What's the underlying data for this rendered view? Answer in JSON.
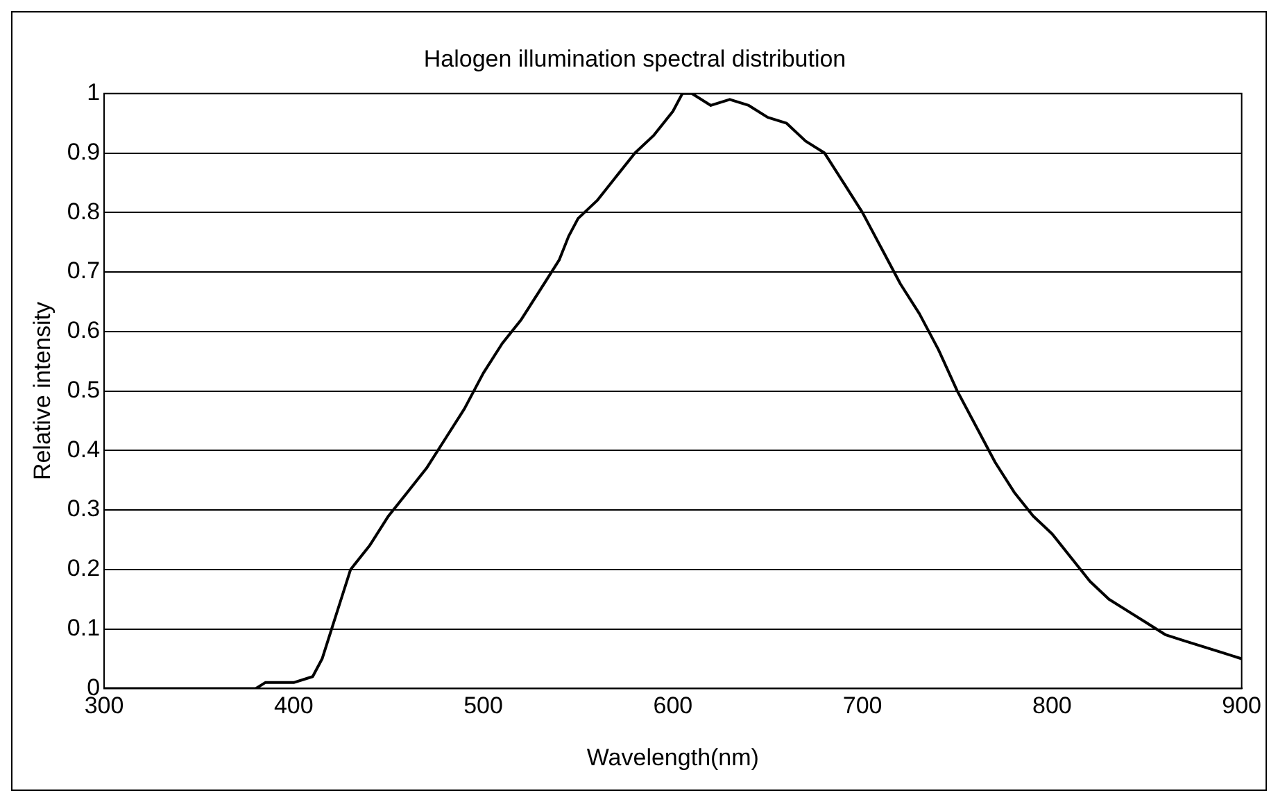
{
  "chart_data": {
    "type": "line",
    "title": "Halogen illumination spectral distribution",
    "xlabel": "Wavelength(nm)",
    "ylabel": "Relative intensity",
    "x": [
      300,
      320,
      340,
      360,
      380,
      385,
      400,
      410,
      415,
      420,
      425,
      430,
      440,
      450,
      460,
      470,
      480,
      490,
      500,
      510,
      520,
      530,
      540,
      545,
      550,
      560,
      570,
      580,
      590,
      600,
      605,
      610,
      620,
      630,
      640,
      650,
      660,
      670,
      680,
      690,
      700,
      710,
      720,
      730,
      740,
      750,
      760,
      770,
      780,
      790,
      800,
      810,
      820,
      830,
      840,
      850,
      860,
      870,
      880,
      890,
      900
    ],
    "series": [
      {
        "color": "#000000",
        "values": [
          0,
          0,
          0,
          0,
          0,
          0.01,
          0.01,
          0.02,
          0.05,
          0.1,
          0.15,
          0.2,
          0.24,
          0.29,
          0.33,
          0.37,
          0.42,
          0.47,
          0.53,
          0.58,
          0.62,
          0.67,
          0.72,
          0.76,
          0.79,
          0.82,
          0.86,
          0.9,
          0.93,
          0.97,
          1.0,
          1.0,
          0.98,
          0.99,
          0.98,
          0.96,
          0.95,
          0.92,
          0.9,
          0.85,
          0.8,
          0.74,
          0.68,
          0.63,
          0.57,
          0.5,
          0.44,
          0.38,
          0.33,
          0.29,
          0.26,
          0.22,
          0.18,
          0.15,
          0.13,
          0.11,
          0.09,
          0.08,
          0.07,
          0.06,
          0.05
        ]
      }
    ],
    "xlim": [
      300,
      900
    ],
    "xticks": [
      300,
      400,
      500,
      600,
      700,
      800,
      900
    ],
    "ylim": [
      0,
      1
    ],
    "yticks": [
      0,
      0.1,
      0.2,
      0.3,
      0.4,
      0.5,
      0.6,
      0.7,
      0.8,
      0.9,
      1
    ],
    "grid": "y",
    "legend": false,
    "marker": "none",
    "line_style": "solid"
  }
}
